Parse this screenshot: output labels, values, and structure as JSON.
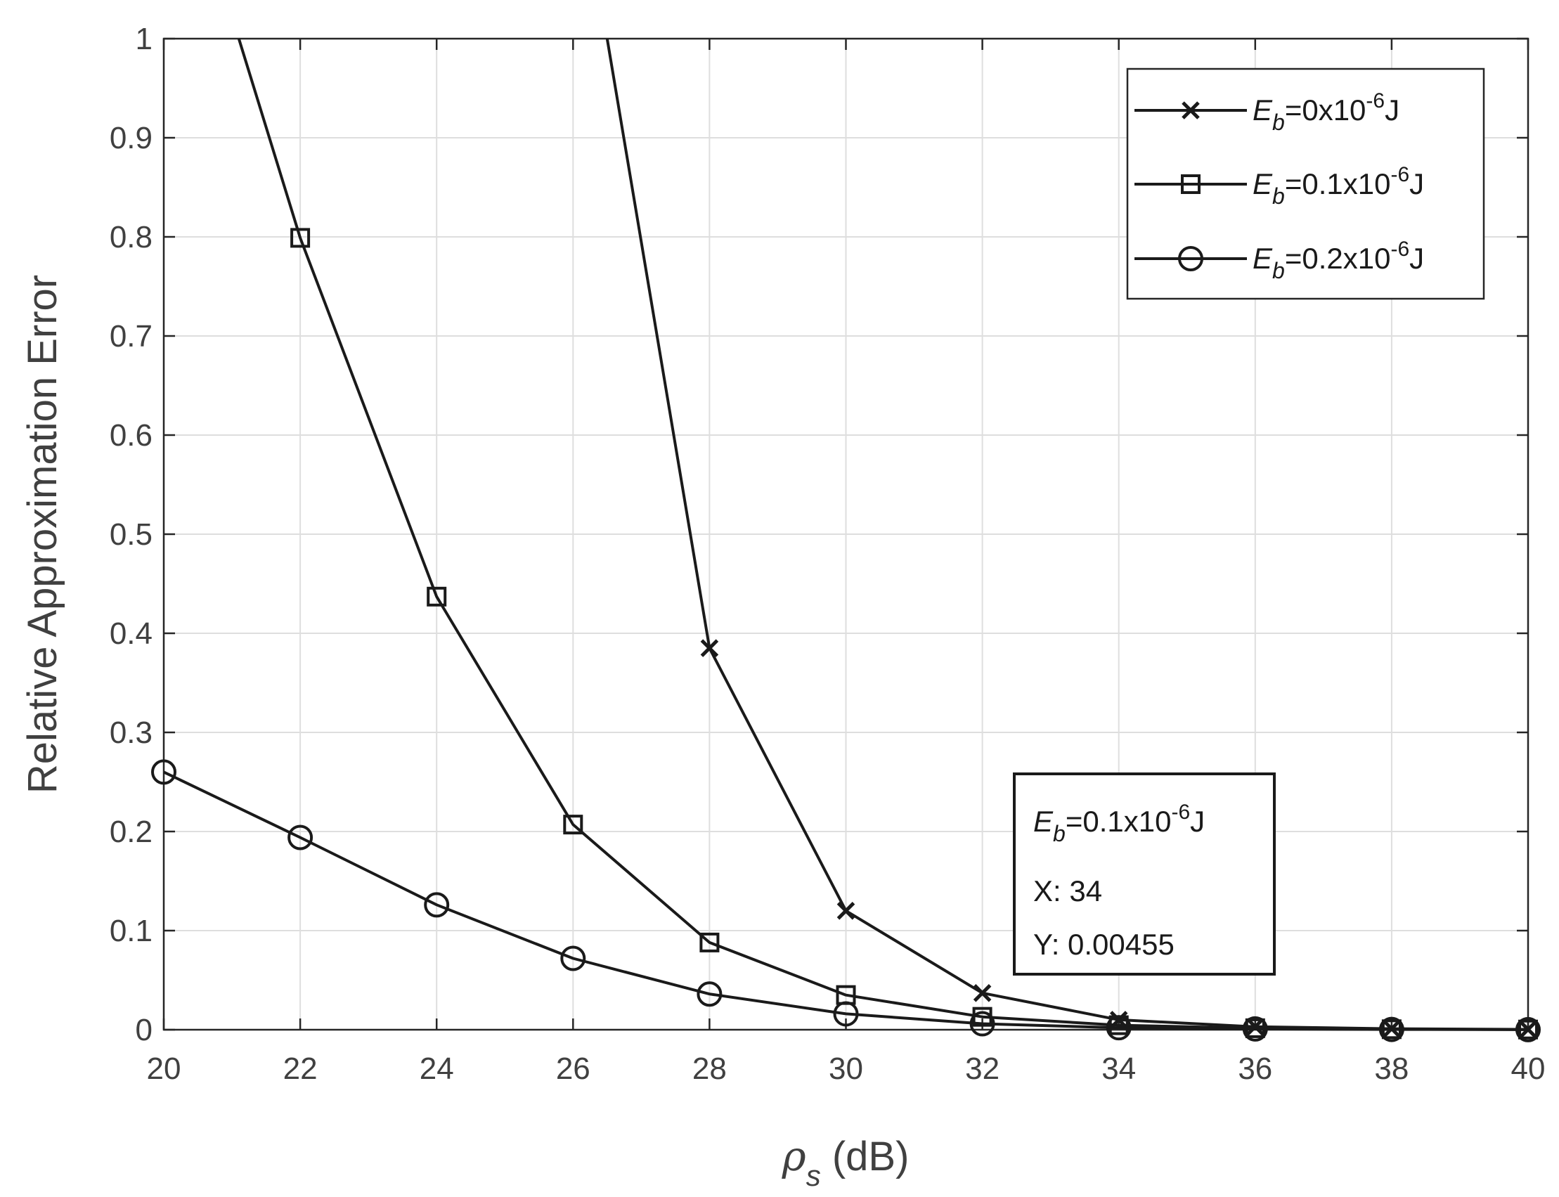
{
  "chart_data": {
    "type": "line",
    "title": "",
    "xlabel": {
      "symbol": "ρ",
      "subscript": "s",
      "suffix": " (dB)"
    },
    "ylabel": "Relative Approximation Error",
    "xlim": [
      20,
      40
    ],
    "ylim": [
      0,
      1
    ],
    "grid": true,
    "x_ticks": [
      "20",
      "22",
      "24",
      "26",
      "28",
      "30",
      "32",
      "34",
      "36",
      "38",
      "40"
    ],
    "y_ticks": [
      "0",
      "0.1",
      "0.2",
      "0.3",
      "0.4",
      "0.5",
      "0.6",
      "0.7",
      "0.8",
      "0.9",
      "1"
    ],
    "legend_position": "top-right",
    "series": [
      {
        "name": "E_b=0x10^-6 J",
        "label": {
          "base": "E",
          "sub": "b",
          "pre": "=0x10",
          "sup": "-6",
          "post": "J"
        },
        "marker": "x",
        "x": [
          26.5,
          28,
          30,
          32,
          34,
          36,
          38,
          40
        ],
        "y": [
          1.0,
          0.385,
          0.12,
          0.037,
          0.01,
          0.003,
          0.001,
          0.0003
        ],
        "markers_from_index": 1
      },
      {
        "name": "E_b=0.1x10^-6 J",
        "label": {
          "base": "E",
          "sub": "b",
          "pre": "=0.1x10",
          "sup": "-6",
          "post": "J"
        },
        "marker": "square",
        "x": [
          21.1,
          22,
          24,
          26,
          28,
          30,
          32,
          34,
          36,
          38,
          40
        ],
        "y": [
          1.0,
          0.799,
          0.437,
          0.207,
          0.088,
          0.035,
          0.013,
          0.00455,
          0.0015,
          0.0005,
          0.0002
        ],
        "markers_from_index": 1
      },
      {
        "name": "E_b=0.2x10^-6 J",
        "label": {
          "base": "E",
          "sub": "b",
          "pre": "=0.2x10",
          "sup": "-6",
          "post": "J"
        },
        "marker": "circle",
        "x": [
          20,
          22,
          24,
          26,
          28,
          30,
          32,
          34,
          36,
          38,
          40
        ],
        "y": [
          0.26,
          0.194,
          0.126,
          0.072,
          0.036,
          0.016,
          0.006,
          0.002,
          0.0008,
          0.0003,
          0.0001
        ],
        "markers_from_index": 0
      }
    ],
    "annotation": {
      "label": {
        "base": "E",
        "sub": "b",
        "pre": "=0.1x10",
        "sup": "-6",
        "post": "J"
      },
      "x_text": "X: 34",
      "y_text": "Y: 0.00455",
      "x": 34,
      "y": 0.00455
    }
  }
}
